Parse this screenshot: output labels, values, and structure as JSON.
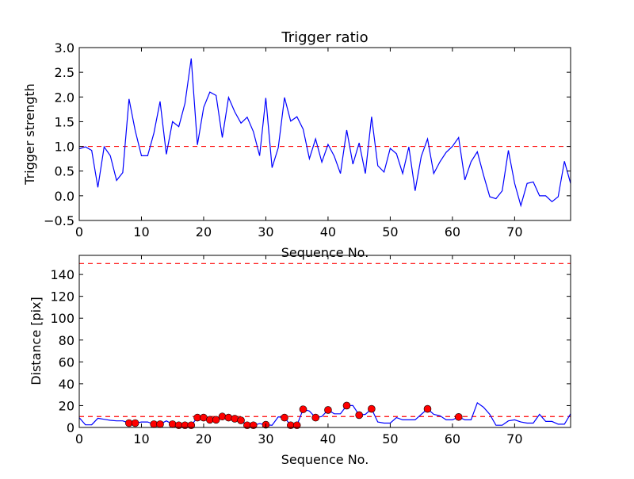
{
  "chart_data": [
    {
      "type": "line",
      "title": "Trigger ratio",
      "xlabel": "Sequence No.",
      "ylabel": "Trigger strength",
      "xlim": [
        0,
        79
      ],
      "ylim": [
        -0.5,
        3.0
      ],
      "xticks": [
        0,
        10,
        20,
        30,
        40,
        50,
        60,
        70
      ],
      "yticks": [
        -0.5,
        0.0,
        0.5,
        1.0,
        1.5,
        2.0,
        2.5,
        3.0
      ],
      "ytick_labels": [
        "−0.5",
        "0.0",
        "0.5",
        "1.0",
        "1.5",
        "2.0",
        "2.5",
        "3.0"
      ],
      "threshold": 1.0,
      "line_color": "#0000ff",
      "threshold_color": "#ff0000",
      "values": [
        0.95,
        0.99,
        0.92,
        0.17,
        0.99,
        0.81,
        0.31,
        0.47,
        1.96,
        1.32,
        0.81,
        0.81,
        1.27,
        1.91,
        0.84,
        1.5,
        1.4,
        1.87,
        2.78,
        1.03,
        1.79,
        2.1,
        2.03,
        1.18,
        1.99,
        1.7,
        1.47,
        1.59,
        1.3,
        0.81,
        1.98,
        0.57,
        0.97,
        1.99,
        1.51,
        1.6,
        1.35,
        0.75,
        1.15,
        0.68,
        1.04,
        0.8,
        0.45,
        1.33,
        0.64,
        1.07,
        0.45,
        1.6,
        0.61,
        0.48,
        0.96,
        0.85,
        0.45,
        0.99,
        0.1,
        0.8,
        1.15,
        0.45,
        0.69,
        0.88,
        1.0,
        1.18,
        0.32,
        0.69,
        0.89,
        0.42,
        -0.02,
        -0.06,
        0.1,
        0.92,
        0.25,
        -0.2,
        0.25,
        0.28,
        0.0,
        0.0,
        -0.12,
        -0.02,
        0.7,
        0.25
      ]
    },
    {
      "type": "line",
      "title": "",
      "xlabel": "Sequence No.",
      "ylabel": "Distance [pix]",
      "xlim": [
        0,
        79
      ],
      "ylim": [
        0,
        157.5
      ],
      "xticks": [
        0,
        10,
        20,
        30,
        40,
        50,
        60,
        70
      ],
      "yticks": [
        0,
        20,
        40,
        60,
        80,
        100,
        120,
        140
      ],
      "thresholds": [
        10,
        150
      ],
      "line_color": "#0000ff",
      "threshold_color": "#ff0000",
      "marker_color": "#ff0000",
      "values": [
        9,
        2.4,
        2.5,
        8.4,
        7.5,
        6.5,
        6,
        6,
        4,
        4,
        5,
        5,
        3,
        3,
        6,
        3,
        2,
        2,
        2,
        9,
        9,
        7,
        7,
        10,
        9,
        8,
        6.5,
        2,
        2,
        3.5,
        2.5,
        2,
        9.7,
        9,
        2,
        2,
        16.6,
        15,
        9,
        10,
        16,
        12.5,
        12.5,
        20,
        20,
        11.3,
        12,
        17,
        5,
        4,
        4,
        9,
        7,
        7,
        7,
        12,
        17,
        12,
        10.7,
        7,
        7,
        9.6,
        7,
        7,
        22.6,
        18.5,
        12,
        2,
        2,
        6,
        7,
        5,
        4,
        4,
        12,
        5.5,
        5.5,
        3,
        3,
        12.5
      ],
      "marked_indices": [
        8,
        9,
        12,
        13,
        15,
        16,
        17,
        18,
        19,
        20,
        21,
        22,
        23,
        24,
        25,
        26,
        27,
        28,
        30,
        33,
        34,
        35,
        36,
        38,
        40,
        43,
        45,
        47,
        56,
        61
      ]
    }
  ]
}
